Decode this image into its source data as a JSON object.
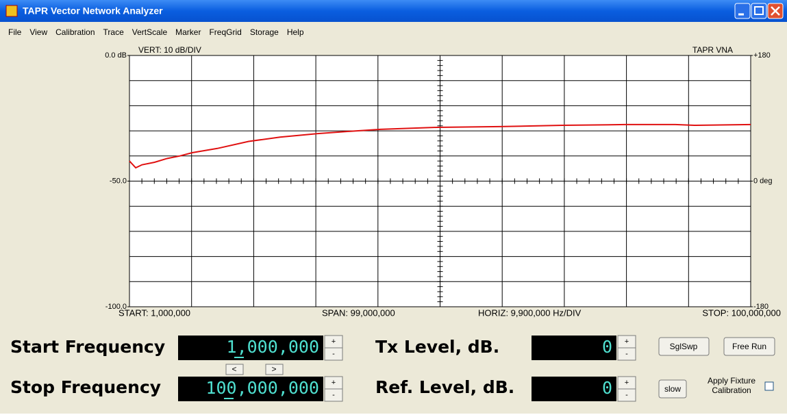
{
  "window": {
    "title": "TAPR Vector Network Analyzer"
  },
  "menu": [
    "File",
    "View",
    "Calibration",
    "Trace",
    "VertScale",
    "Marker",
    "FreqGrid",
    "Storage",
    "Help"
  ],
  "chart_data": {
    "type": "line",
    "annotations": {
      "vert": "VERT: 10 dB/DIV",
      "brand": "TAPR VNA",
      "start": "START: 1,000,000",
      "span": "SPAN: 99,000,000",
      "horiz": "HORIZ: 9,900,000 Hz/DIV",
      "stop": "STOP: 100,000,000"
    },
    "x": [
      1000000,
      2000000,
      3000000,
      5000000,
      7000000,
      9000000,
      11000000,
      15000000,
      20000000,
      25000000,
      31000000,
      36000000,
      41000000,
      50000000,
      60000000,
      70000000,
      80000000,
      88000000,
      91000000,
      100000000
    ],
    "values": [
      -42,
      -44.7,
      -43.5,
      -42.5,
      -41,
      -40,
      -38.7,
      -37,
      -34.2,
      -32.5,
      -31.1,
      -30.2,
      -29.4,
      -28.6,
      -28.3,
      -27.8,
      -27.5,
      -27.5,
      -27.8,
      -27.5
    ],
    "color": "#e01010",
    "xlim": [
      1000000,
      100000000
    ],
    "ylim": [
      -100,
      0
    ],
    "yticks": [
      {
        "value": 0,
        "label": "0.0 dB"
      },
      {
        "value": -50,
        "label": "-50.0"
      },
      {
        "value": -100,
        "label": "-100.0"
      }
    ],
    "y2lim": [
      -180,
      180
    ],
    "y2ticks": [
      {
        "value": 180,
        "label": "+180"
      },
      {
        "value": 0,
        "label": "0 deg"
      },
      {
        "value": -180,
        "label": "-180"
      }
    ]
  },
  "controls": {
    "start_label": "Start Frequency",
    "start_value": "1,000,000",
    "stop_label": "Stop Frequency",
    "stop_value": "100,000,000",
    "tx_label": "Tx Level, dB.",
    "tx_value": "0",
    "ref_label": "Ref. Level, dB.",
    "ref_value": "0",
    "plus": "+",
    "minus": "-",
    "left": "<",
    "right": ">",
    "sglswp": "SglSwp",
    "freerun": "Free Run",
    "slow": "slow",
    "fixture": [
      "Apply Fixture",
      "Calibration"
    ]
  }
}
